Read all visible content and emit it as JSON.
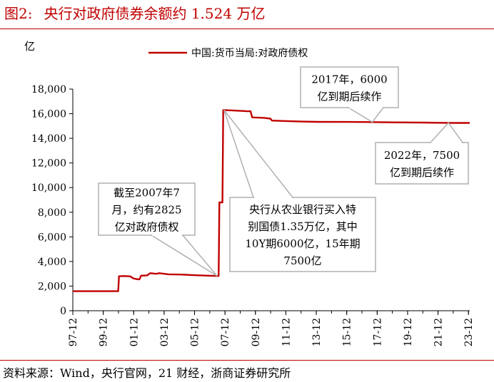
{
  "figure": {
    "label": "图2:",
    "title": "央行对政府债券余额约 1.524 万亿",
    "source": "资料来源：Wind，央行官网，21 财经，浙商证券研究所"
  },
  "chart_data": {
    "type": "line",
    "ylabel": "亿",
    "ylim": [
      0,
      18000
    ],
    "yticks": [
      0,
      2000,
      4000,
      6000,
      8000,
      10000,
      12000,
      14000,
      16000,
      18000
    ],
    "ytick_labels": [
      "0",
      "2,000",
      "4,000",
      "6,000",
      "8,000",
      "10,000",
      "12,000",
      "14,000",
      "16,000",
      "18,000"
    ],
    "xlim": [
      1997.917,
      2024.0
    ],
    "xtick_labels": [
      "97-12",
      "99-12",
      "01-12",
      "03-12",
      "05-12",
      "07-12",
      "09-12",
      "11-12",
      "13-12",
      "15-12",
      "17-12",
      "19-12",
      "21-12",
      "23-12"
    ],
    "xtick_values": [
      1997.917,
      1999.917,
      2001.917,
      2003.917,
      2005.917,
      2007.917,
      2009.917,
      2011.917,
      2013.917,
      2015.917,
      2017.917,
      2019.917,
      2021.917,
      2023.917
    ],
    "legend_position": "top",
    "series": [
      {
        "name": "中国:货币当局:对政府债权",
        "color": "#c00000",
        "points": [
          [
            1997.917,
            1583
          ],
          [
            1998.5,
            1583
          ],
          [
            1999.5,
            1583
          ],
          [
            2000.5,
            1583
          ],
          [
            2000.9,
            1583
          ],
          [
            2000.95,
            2800
          ],
          [
            2001.3,
            2820
          ],
          [
            2001.7,
            2790
          ],
          [
            2001.9,
            2620
          ],
          [
            2002.2,
            2550
          ],
          [
            2002.3,
            2550
          ],
          [
            2002.4,
            2850
          ],
          [
            2002.8,
            2870
          ],
          [
            2003.0,
            3050
          ],
          [
            2003.4,
            3000
          ],
          [
            2003.6,
            3050
          ],
          [
            2004.2,
            2960
          ],
          [
            2005.0,
            2940
          ],
          [
            2006.0,
            2880
          ],
          [
            2006.8,
            2850
          ],
          [
            2007.4,
            2825
          ],
          [
            2007.5,
            2825
          ],
          [
            2007.55,
            8800
          ],
          [
            2007.75,
            8800
          ],
          [
            2007.8,
            16300
          ],
          [
            2008.5,
            16260
          ],
          [
            2009.4,
            16200
          ],
          [
            2009.6,
            16200
          ],
          [
            2009.7,
            15700
          ],
          [
            2010.5,
            15660
          ],
          [
            2010.9,
            15600
          ],
          [
            2011.0,
            15440
          ],
          [
            2012.0,
            15400
          ],
          [
            2013.0,
            15360
          ],
          [
            2014.0,
            15340
          ],
          [
            2016.0,
            15330
          ],
          [
            2017.5,
            15320
          ],
          [
            2019.0,
            15300
          ],
          [
            2021.0,
            15280
          ],
          [
            2022.0,
            15260
          ],
          [
            2023.0,
            15250
          ],
          [
            2024.0,
            15250
          ]
        ]
      }
    ],
    "annotations": [
      {
        "id": "ann-2007",
        "lines": [
          "截至2007年7",
          "月，约有2825",
          "亿对政府债权"
        ],
        "target": [
          2007.4,
          2825
        ]
      },
      {
        "id": "ann-special-bond",
        "lines": [
          "央行从农业银行买入特",
          "别国债1.35万亿，其中",
          "10Y期6000亿，15年期",
          "7500亿"
        ],
        "target": [
          2007.85,
          16300
        ]
      },
      {
        "id": "ann-2017",
        "lines": [
          "2017年，6000",
          "亿到期后续作"
        ],
        "target": [
          2017.6,
          15320
        ]
      },
      {
        "id": "ann-2022",
        "lines": [
          "2022年，7500",
          "亿到期后续作"
        ],
        "target": [
          2022.6,
          15260
        ]
      }
    ]
  }
}
